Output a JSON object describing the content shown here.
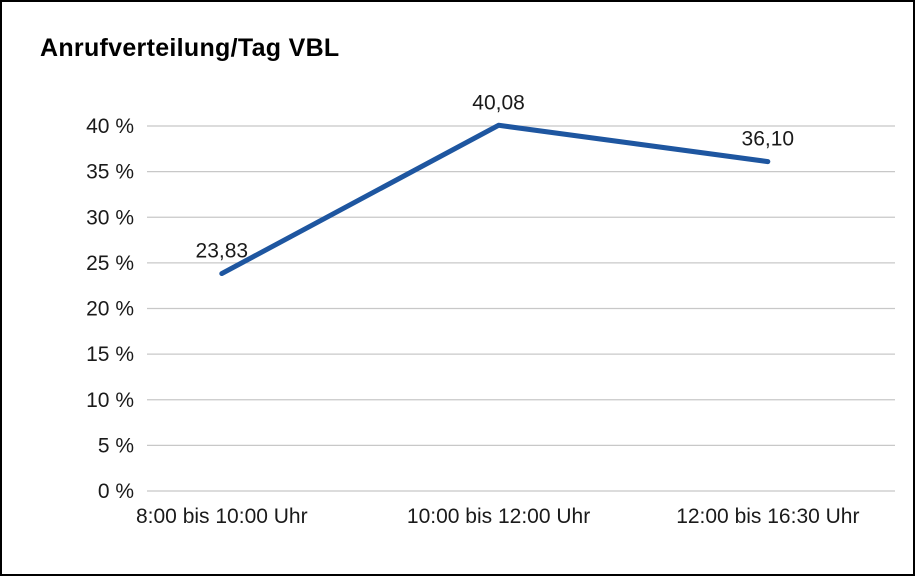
{
  "chart_data": {
    "type": "line",
    "title": "Anrufverteilung/Tag VBL",
    "categories": [
      "8:00 bis 10:00 Uhr",
      "10:00 bis 12:00 Uhr",
      "12:00 bis 16:30 Uhr"
    ],
    "values": [
      23.83,
      40.08,
      36.1
    ],
    "point_labels": [
      "23,83",
      "40,08",
      "36,10"
    ],
    "xlabel": "",
    "ylabel": "",
    "ylim": [
      0,
      40
    ],
    "ytick_step": 5,
    "ytick_labels": [
      "0 %",
      "5 %",
      "10 %",
      "15 %",
      "20 %",
      "25 %",
      "30 %",
      "35 %",
      "40 %"
    ],
    "grid": "horizontal",
    "legend": "none",
    "line_color": "#1e56a0",
    "grid_color": "#c8c8c8",
    "text_color": "#1a1a1a"
  }
}
